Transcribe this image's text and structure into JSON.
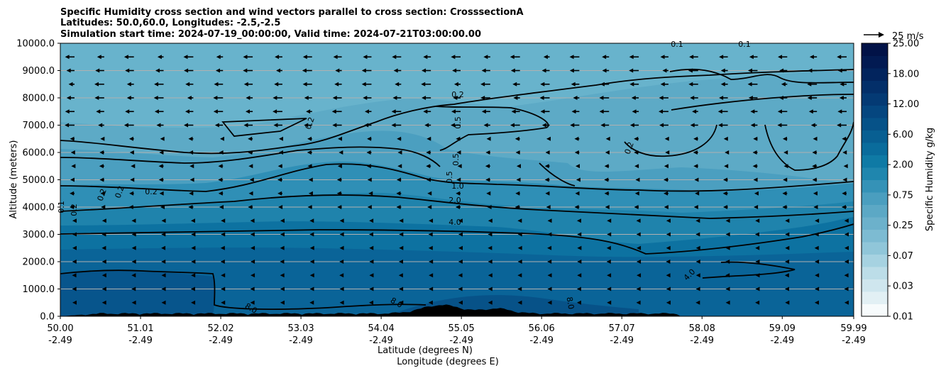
{
  "chart_data": {
    "type": "heatmap",
    "title_lines": [
      "Specific Humidity cross section and wind vectors parallel to cross section: CrosssectionA",
      "Latitudes: 50.0,60.0, Longitudes: -2.5,-2.5",
      "Simulation start time: 2024-07-19_00:00:00, Valid time: 2024-07-21T03:00:00.00"
    ],
    "xlabel_lines": [
      "Latitude (degrees N)",
      "Longitude (degrees E)"
    ],
    "ylabel": "Altitude (meters)",
    "x_ticks": [
      {
        "lat": "50.00",
        "lon": "-2.49",
        "value": 50.0
      },
      {
        "lat": "51.01",
        "lon": "-2.49",
        "value": 51.01
      },
      {
        "lat": "52.02",
        "lon": "-2.49",
        "value": 52.02
      },
      {
        "lat": "53.03",
        "lon": "-2.49",
        "value": 53.03
      },
      {
        "lat": "54.04",
        "lon": "-2.49",
        "value": 54.04
      },
      {
        "lat": "55.05",
        "lon": "-2.49",
        "value": 55.05
      },
      {
        "lat": "56.06",
        "lon": "-2.49",
        "value": 56.06
      },
      {
        "lat": "57.07",
        "lon": "-2.49",
        "value": 57.07
      },
      {
        "lat": "58.08",
        "lon": "-2.49",
        "value": 58.08
      },
      {
        "lat": "59.09",
        "lon": "-2.49",
        "value": 59.09
      },
      {
        "lat": "59.99",
        "lon": "-2.49",
        "value": 59.99
      }
    ],
    "xlim": [
      50.0,
      59.99
    ],
    "y_ticks": [
      "0.0",
      "1000.0",
      "2000.0",
      "3000.0",
      "4000.0",
      "5000.0",
      "6000.0",
      "7000.0",
      "8000.0",
      "9000.0",
      "10000.0"
    ],
    "ylim": [
      0,
      10000
    ],
    "grid": "horizontal",
    "colorbar": {
      "label": "Specific Humidity g/kg",
      "tick_labels": [
        "0.01",
        "0.03",
        "0.07",
        "0.25",
        "0.75",
        "2.00",
        "6.00",
        "12.00",
        "18.00",
        "25.00"
      ],
      "colors": [
        "#f7fbfc",
        "#e2f0f4",
        "#cfe6ee",
        "#bcdde8",
        "#a6d2e1",
        "#90c6d9",
        "#7dbbd2",
        "#6cb1cb",
        "#5ca8c5",
        "#4a9ebf",
        "#3592b7",
        "#1f86ae",
        "#0f7aa5",
        "#0a6c9c",
        "#085f92",
        "#065288",
        "#05467f",
        "#043a74",
        "#032f69",
        "#02245d",
        "#021a52",
        "#011247"
      ]
    },
    "quiver_key": "25 m/s",
    "contour_labels": [
      "0.1",
      "0.1",
      "0.2",
      "0.2",
      "0.2",
      "0.2",
      "0.2",
      "0.2",
      "0.5",
      "0.5",
      "0.5",
      "1.0",
      "2.0",
      "4.0",
      "4.0",
      "8.0",
      "8.0",
      "8.0",
      "0.1",
      "0.2"
    ],
    "wind_rows_altitude_m": [
      9500,
      9000,
      8500,
      8000,
      7500,
      7000,
      6500,
      6000,
      5500,
      5000,
      4500,
      4000,
      3500,
      3000,
      2500,
      2000,
      1500,
      1000,
      500
    ],
    "wind_speed_upper_ms": 12,
    "wind_speed_lower_ms": 3,
    "terrain_max_altitude_m": 450,
    "humidity_layers_gkg": [
      {
        "value": 0.25,
        "top_m": 10000
      },
      {
        "value": 0.5,
        "top_m": 6500
      },
      {
        "value": 1.0,
        "top_m": 5200
      },
      {
        "value": 2.0,
        "top_m": 4300
      },
      {
        "value": 4.0,
        "top_m": 3500
      },
      {
        "value": 6.0,
        "top_m": 2900
      },
      {
        "value": 8.0,
        "top_m": 1600
      }
    ]
  }
}
